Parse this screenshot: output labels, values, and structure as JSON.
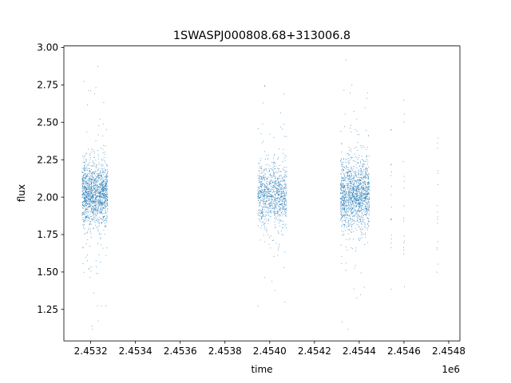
{
  "chart_data": {
    "type": "scatter",
    "title": "1SWASPJ000808.68+313006.8",
    "xlabel": "time",
    "ylabel": "flux",
    "x_offset_label": "1e6",
    "x_scale": 1000000,
    "xlim": [
      2453080,
      2454850
    ],
    "ylim": [
      1.04,
      3.01
    ],
    "x_ticks": [
      2453200,
      2453400,
      2453600,
      2453800,
      2454000,
      2454200,
      2454400,
      2454600,
      2454800
    ],
    "x_tick_labels": [
      "2.4532",
      "2.4534",
      "2.4536",
      "2.4538",
      "2.4540",
      "2.4542",
      "2.4544",
      "2.4546",
      "2.4548"
    ],
    "y_ticks": [
      1.25,
      1.5,
      1.75,
      2.0,
      2.25,
      2.5,
      2.75,
      3.0
    ],
    "y_tick_labels": [
      "1.25",
      "1.50",
      "1.75",
      "2.00",
      "2.25",
      "2.50",
      "2.75",
      "3.00"
    ],
    "grid": false,
    "legend": "none",
    "marker_color": "#1f77b4",
    "series": [
      {
        "observing_seasons": [
          {
            "x_range": [
              2453160,
              2453275
            ],
            "flux_median": 2.02,
            "flux_spread": 0.1,
            "density": "high"
          },
          {
            "x_range": [
              2453945,
              2454075
            ],
            "flux_median": 2.02,
            "flux_spread": 0.1,
            "density": "medium"
          },
          {
            "x_range": [
              2454315,
              2454445
            ],
            "flux_median": 2.02,
            "flux_spread": 0.11,
            "density": "high"
          },
          {
            "x_range": [
              2454530,
              2454760
            ],
            "flux_median": 2.0,
            "flux_spread": 0.3,
            "density": "sparse"
          }
        ],
        "flux_extremes": {
          "min": 1.12,
          "max": 2.92
        }
      }
    ]
  }
}
